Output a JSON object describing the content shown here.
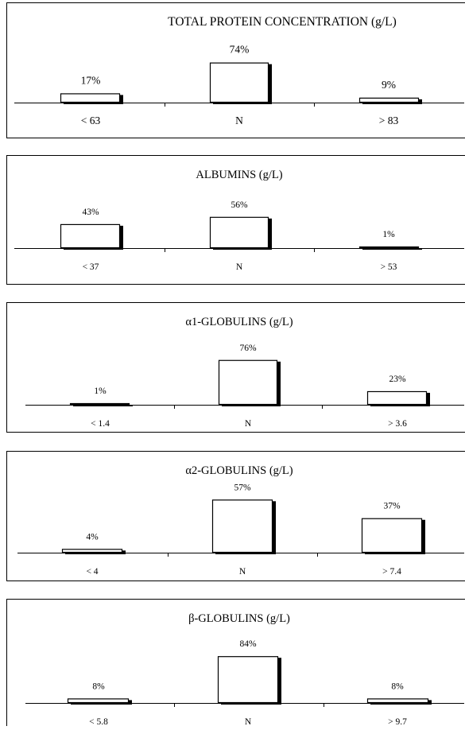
{
  "chart_data": [
    {
      "type": "bar",
      "title": "TOTAL PROTEIN CONCENTRATION (g/L)",
      "categories": [
        "< 63",
        "N",
        "> 83"
      ],
      "values": [
        17,
        74,
        9
      ],
      "value_labels": [
        "17%",
        "74%",
        "9%"
      ],
      "unit": "%",
      "ylim": [
        0,
        100
      ],
      "grid": false,
      "legend": "none",
      "colors": {
        "bar_fill": "#ffffff",
        "bar_edge": "#000000",
        "bar_shadow": "#000000"
      }
    },
    {
      "type": "bar",
      "title": "ALBUMINS (g/L)",
      "categories": [
        "< 37",
        "N",
        "> 53"
      ],
      "values": [
        43,
        56,
        1
      ],
      "value_labels": [
        "43%",
        "56%",
        "1%"
      ],
      "unit": "%",
      "ylim": [
        0,
        100
      ],
      "grid": false,
      "legend": "none",
      "colors": {
        "bar_fill": "#ffffff",
        "bar_edge": "#000000",
        "bar_shadow": "#000000"
      }
    },
    {
      "type": "bar",
      "title": "α1-GLOBULINS (g/L)",
      "categories": [
        "< 1.4",
        "N",
        "> 3.6"
      ],
      "values": [
        1,
        76,
        23
      ],
      "value_labels": [
        "1%",
        "76%",
        "23%"
      ],
      "unit": "%",
      "ylim": [
        0,
        100
      ],
      "grid": false,
      "legend": "none",
      "colors": {
        "bar_fill": "#ffffff",
        "bar_edge": "#000000",
        "bar_shadow": "#000000"
      }
    },
    {
      "type": "bar",
      "title": "α2-GLOBULINS (g/L)",
      "categories": [
        "< 4",
        "N",
        "> 7.4"
      ],
      "values": [
        4,
        57,
        37
      ],
      "value_labels": [
        "4%",
        "57%",
        "37%"
      ],
      "unit": "%",
      "ylim": [
        0,
        100
      ],
      "grid": false,
      "legend": "none",
      "colors": {
        "bar_fill": "#ffffff",
        "bar_edge": "#000000",
        "bar_shadow": "#000000"
      }
    },
    {
      "type": "bar",
      "title": "β-GLOBULINS (g/L)",
      "categories": [
        "< 5.8",
        "N",
        "> 9.7"
      ],
      "values": [
        8,
        84,
        8
      ],
      "value_labels": [
        "8%",
        "84%",
        "8%"
      ],
      "unit": "%",
      "ylim": [
        0,
        100
      ],
      "grid": false,
      "legend": "none",
      "colors": {
        "bar_fill": "#ffffff",
        "bar_edge": "#000000",
        "bar_shadow": "#000000"
      }
    }
  ]
}
